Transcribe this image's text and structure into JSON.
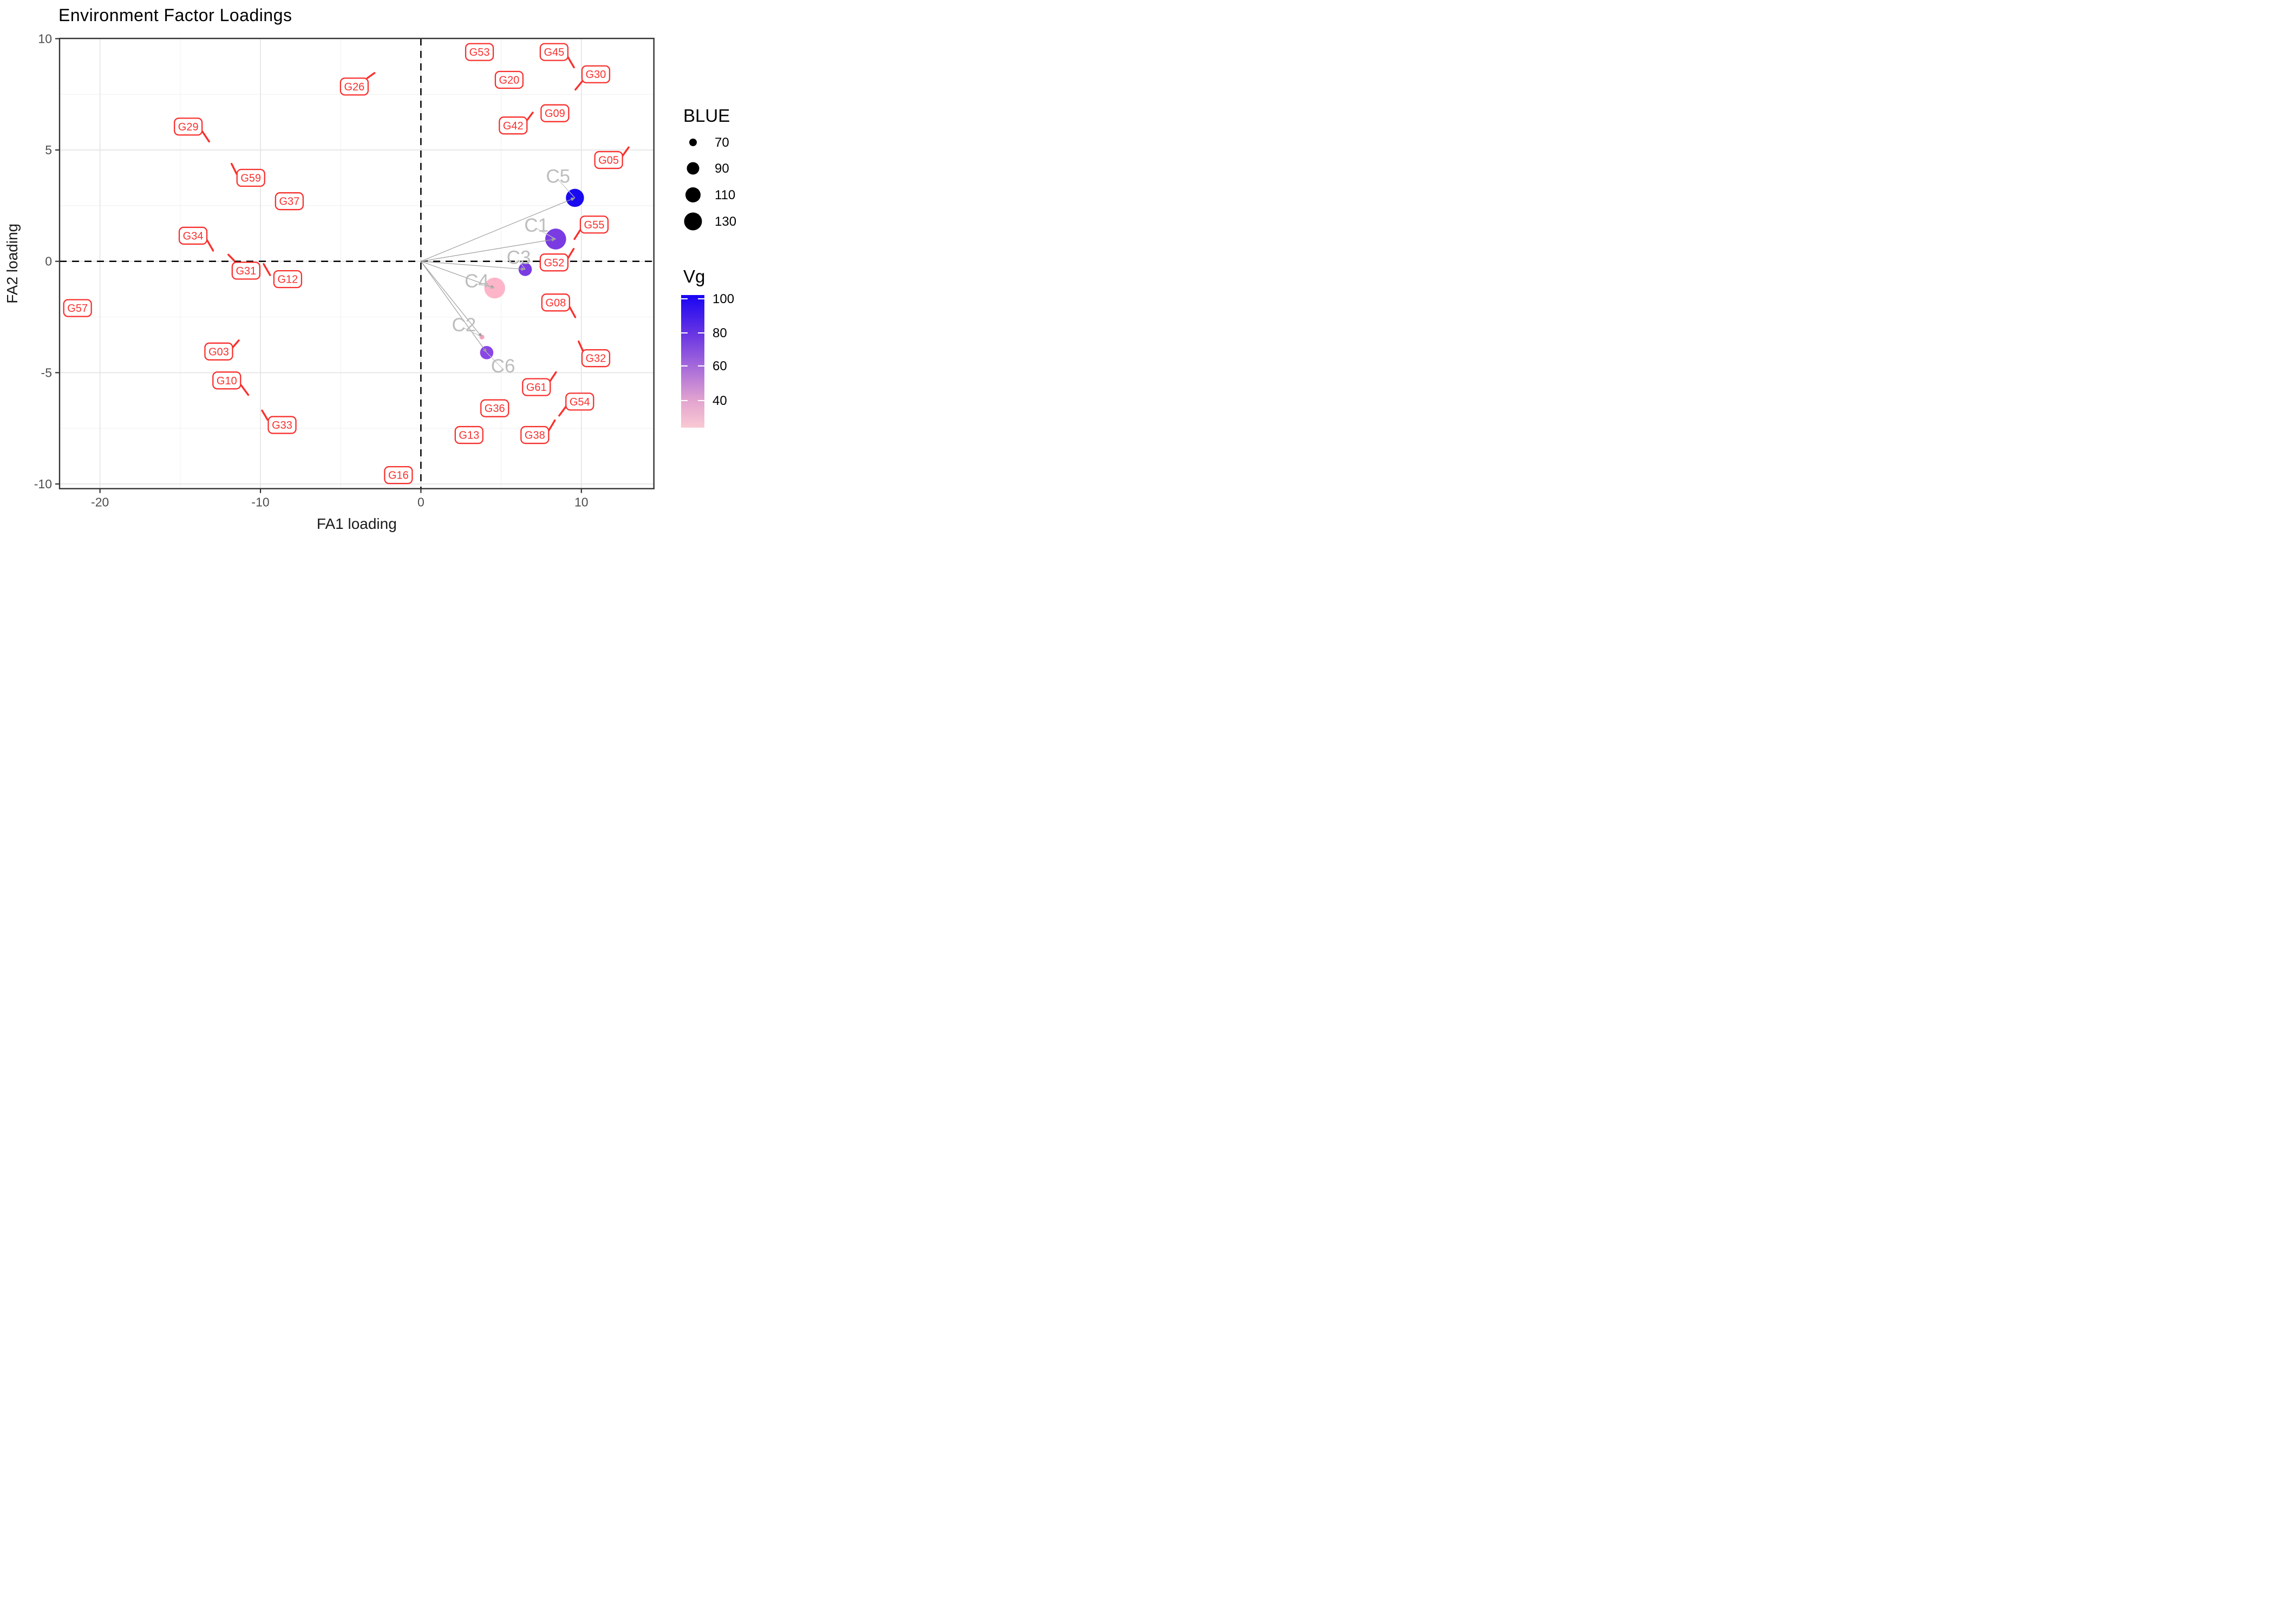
{
  "title": "Environment Factor Loadings",
  "chart_data": {
    "type": "scatter",
    "title": "Environment Factor Loadings",
    "xlabel": "FA1 loading",
    "ylabel": "FA2 loading",
    "xlim": [
      -22.52,
      14.52
    ],
    "ylim": [
      -10.21,
      10.01
    ],
    "x_major_ticks": [
      -20,
      -10,
      0,
      10
    ],
    "y_major_ticks": [
      -10,
      -5,
      0,
      5,
      10
    ],
    "x_minor_ticks": [
      -15,
      -5,
      5
    ],
    "y_minor_ticks": [
      -7.5,
      -2.5,
      2.5,
      7.5
    ],
    "grid": true,
    "reference_lines": {
      "x": 0,
      "y": 0,
      "style": "dashed"
    },
    "arrows_from_origin": true,
    "environments": [
      {
        "name": "C1",
        "x": 8.4,
        "y": 1.0,
        "radius_px": 19.3,
        "color": "#7A3BE2",
        "blue_est": 145,
        "vg_est": 75,
        "label_x": 7.2,
        "label_y": 1.62
      },
      {
        "name": "C2",
        "x": 3.8,
        "y": -3.4,
        "radius_px": 4.5,
        "color": "#F6A2C0",
        "blue_est": 55,
        "vg_est": 38,
        "label_x": 2.68,
        "label_y": -2.85
      },
      {
        "name": "C3",
        "x": 6.5,
        "y": -0.36,
        "radius_px": 12.3,
        "color": "#7A3BE2",
        "blue_est": 102,
        "vg_est": 75,
        "label_x": 6.1,
        "label_y": 0.18
      },
      {
        "name": "C4",
        "x": 4.6,
        "y": -1.2,
        "radius_px": 19.3,
        "color": "#FFB5C9",
        "blue_est": 143,
        "vg_est": 32,
        "label_x": 3.48,
        "label_y": -0.88
      },
      {
        "name": "C5",
        "x": 9.6,
        "y": 2.85,
        "radius_px": 16.7,
        "color": "#1A0AEF",
        "blue_est": 130,
        "vg_est": 100,
        "label_x": 8.55,
        "label_y": 3.82
      },
      {
        "name": "C6",
        "x": 4.1,
        "y": -4.1,
        "radius_px": 12.3,
        "color": "#8A46E6",
        "blue_est": 103,
        "vg_est": 78,
        "label_x": 5.12,
        "label_y": -4.7
      }
    ],
    "genotype_labels": [
      {
        "label": "G53",
        "x": 3.65,
        "y": 9.4,
        "seg": null
      },
      {
        "label": "G45",
        "x": 8.3,
        "y": 9.4,
        "seg": [
          9.14,
          9.2,
          9.54,
          8.71
        ]
      },
      {
        "label": "G30",
        "x": 10.9,
        "y": 8.4,
        "seg": [
          9.63,
          7.71,
          10.08,
          8.11
        ]
      },
      {
        "label": "G20",
        "x": 5.5,
        "y": 8.15,
        "seg": null
      },
      {
        "label": "G26",
        "x": -4.15,
        "y": 7.85,
        "seg": [
          -3.34,
          8.23,
          -2.89,
          8.46
        ]
      },
      {
        "label": "G09",
        "x": 8.35,
        "y": 6.65,
        "seg": null
      },
      {
        "label": "G42",
        "x": 5.75,
        "y": 6.1,
        "seg": [
          6.6,
          6.32,
          6.97,
          6.68
        ]
      },
      {
        "label": "G05",
        "x": 11.7,
        "y": 4.55,
        "seg": [
          12.55,
          4.72,
          12.95,
          5.12
        ]
      },
      {
        "label": "G29",
        "x": -14.5,
        "y": 6.05,
        "seg": [
          -13.62,
          5.83,
          -13.2,
          5.38
        ]
      },
      {
        "label": "G59",
        "x": -10.6,
        "y": 3.75,
        "seg": [
          -11.48,
          3.92,
          -11.8,
          4.38
        ]
      },
      {
        "label": "G37",
        "x": -8.2,
        "y": 2.7,
        "seg": null
      },
      {
        "label": "G34",
        "x": -14.2,
        "y": 1.15,
        "seg": [
          -13.35,
          0.98,
          -12.95,
          0.48
        ]
      },
      {
        "label": "G55",
        "x": 10.8,
        "y": 1.65,
        "seg": [
          9.57,
          1.0,
          9.97,
          1.45
        ]
      },
      {
        "label": "G52",
        "x": 8.3,
        "y": -0.05,
        "seg": [
          9.13,
          0.1,
          9.52,
          0.56
        ]
      },
      {
        "label": "G31",
        "x": -10.9,
        "y": -0.42,
        "seg": [
          -11.62,
          0.02,
          -12.0,
          0.3
        ]
      },
      {
        "label": "G12",
        "x": -8.3,
        "y": -0.8,
        "seg": [
          -9.4,
          -0.62,
          -9.8,
          -0.12
        ]
      },
      {
        "label": "G57",
        "x": -21.4,
        "y": -2.1,
        "seg": null
      },
      {
        "label": "G08",
        "x": 8.4,
        "y": -1.85,
        "seg": [
          9.27,
          -2.05,
          9.62,
          -2.51
        ]
      },
      {
        "label": "G03",
        "x": -12.6,
        "y": -4.05,
        "seg": [
          -11.72,
          -3.86,
          -11.35,
          -3.55
        ]
      },
      {
        "label": "G32",
        "x": 10.9,
        "y": -4.35,
        "seg": [
          9.83,
          -3.6,
          10.15,
          -4.1
        ]
      },
      {
        "label": "G10",
        "x": -12.1,
        "y": -5.35,
        "seg": [
          -11.22,
          -5.55,
          -10.76,
          -6.0
        ]
      },
      {
        "label": "G61",
        "x": 7.2,
        "y": -5.65,
        "seg": [
          8.05,
          -5.38,
          8.42,
          -4.98
        ]
      },
      {
        "label": "G36",
        "x": 4.6,
        "y": -6.6,
        "seg": null
      },
      {
        "label": "G54",
        "x": 9.9,
        "y": -6.3,
        "seg": [
          9.06,
          -6.5,
          8.62,
          -6.93
        ]
      },
      {
        "label": "G33",
        "x": -8.65,
        "y": -7.35,
        "seg": [
          -9.55,
          -7.12,
          -9.9,
          -6.7
        ]
      },
      {
        "label": "G13",
        "x": 3.0,
        "y": -7.8,
        "seg": null
      },
      {
        "label": "G38",
        "x": 7.1,
        "y": -7.8,
        "seg": [
          7.97,
          -7.6,
          8.35,
          -7.14
        ]
      },
      {
        "label": "G16",
        "x": -1.4,
        "y": -9.6,
        "seg": null
      }
    ],
    "legends": {
      "size": {
        "title": "BLUE",
        "entries": [
          {
            "value": 70,
            "radius_px": 7
          },
          {
            "value": 90,
            "radius_px": 11.5
          },
          {
            "value": 110,
            "radius_px": 14
          },
          {
            "value": 130,
            "radius_px": 16.5
          }
        ]
      },
      "color": {
        "title": "Vg",
        "tick_values": [
          100,
          80,
          60,
          40
        ],
        "bar_top_value": 102,
        "bar_bottom_value": 25,
        "gradient_stops": [
          {
            "offset": 0,
            "color": "#1804F4"
          },
          {
            "offset": 0.3,
            "color": "#6A36E2"
          },
          {
            "offset": 0.55,
            "color": "#A86CDA"
          },
          {
            "offset": 0.8,
            "color": "#E3A4CF"
          },
          {
            "offset": 1,
            "color": "#F9C9D3"
          }
        ]
      }
    },
    "style_colors": {
      "genotype_red": "#F8312E",
      "env_label_gray": "#BDBDBD",
      "arrow_gray": "#9E9E9E",
      "leader_gray": "#C4C4C4",
      "grid_major": "#E6E6E6",
      "grid_minor": "#F2F2F2",
      "panel_border": "#333333",
      "tick_text": "#4D4D4D",
      "dashed_line": "#000000"
    }
  }
}
